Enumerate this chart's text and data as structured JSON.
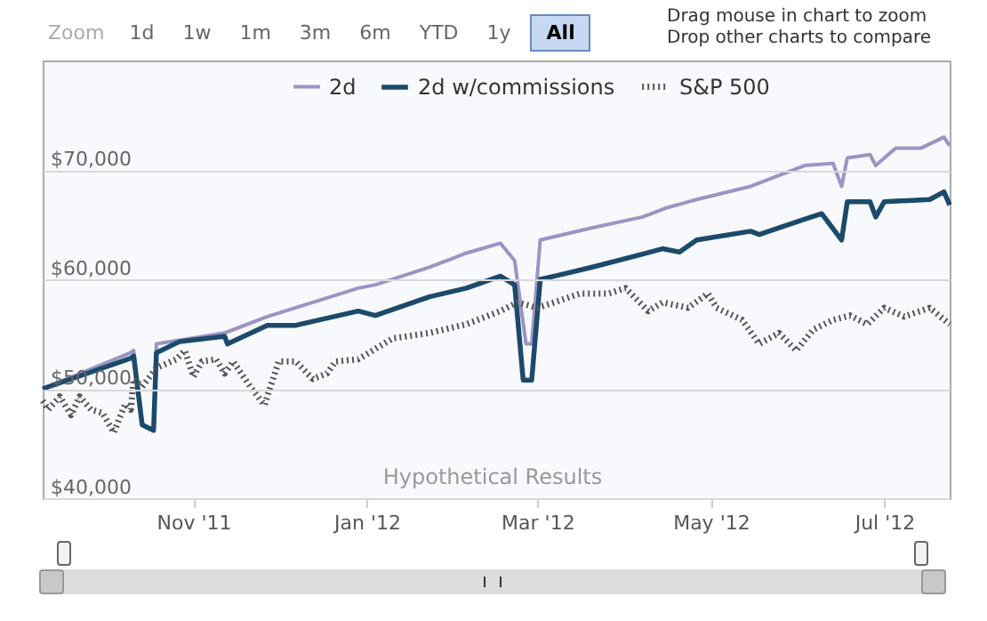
{
  "chart_data": {
    "type": "line",
    "annotations": [
      "Zoom",
      "1d",
      "1w",
      "1m",
      "3m",
      "6m",
      "YTD",
      "1y",
      "All",
      "Drag mouse in chart to zoom",
      "Drop other charts to compare",
      "Hypothetical Results"
    ],
    "xlim": [
      "2011-09-09",
      "2012-07-24"
    ],
    "xticks": [
      {
        "value": "2011-11-01",
        "label": "Nov '11"
      },
      {
        "value": "2012-01-01",
        "label": "Jan '12"
      },
      {
        "value": "2012-03-01",
        "label": "Mar '12"
      },
      {
        "value": "2012-05-01",
        "label": "May '12"
      },
      {
        "value": "2012-07-01",
        "label": "Jul '12"
      }
    ],
    "ylim": [
      40000,
      80000
    ],
    "yticks": [
      {
        "value": 40000,
        "label": "$40,000"
      },
      {
        "value": 50000,
        "label": "$50,000"
      },
      {
        "value": 60000,
        "label": "$60,000"
      },
      {
        "value": 70000,
        "label": "$70,000"
      }
    ],
    "grid": "y",
    "legend": "top",
    "series": [
      {
        "name": "2d",
        "color": "#9b94c4",
        "line_style": "solid",
        "x": [
          "2011-09-09",
          "2011-10-10",
          "2011-10-11",
          "2011-10-14",
          "2011-10-18",
          "2011-10-19",
          "2011-11-12",
          "2011-11-27",
          "2011-12-29",
          "2012-01-04",
          "2012-01-23",
          "2012-02-05",
          "2012-02-17",
          "2012-02-22",
          "2012-02-26",
          "2012-02-28",
          "2012-03-02",
          "2012-03-20",
          "2012-04-07",
          "2012-04-15",
          "2012-04-26",
          "2012-05-15",
          "2012-06-03",
          "2012-06-13",
          "2012-06-16",
          "2012-06-18",
          "2012-06-26",
          "2012-06-28",
          "2012-07-05",
          "2012-07-14",
          "2012-07-22",
          "2012-07-24"
        ],
        "values": [
          50000,
          53300,
          53500,
          46700,
          46200,
          54100,
          55100,
          56600,
          59200,
          59500,
          61100,
          62400,
          63300,
          61700,
          54100,
          54100,
          63600,
          64700,
          65700,
          66500,
          67300,
          68500,
          70400,
          70600,
          68500,
          71100,
          71400,
          70400,
          72000,
          72000,
          73000,
          72200
        ]
      },
      {
        "name": "2d w/commissions",
        "color": "#1b4a6b",
        "line_style": "solid",
        "x": [
          "2011-09-09",
          "2011-10-10",
          "2011-10-11",
          "2011-10-14",
          "2011-10-18",
          "2011-10-19",
          "2011-10-27",
          "2011-11-12",
          "2011-11-13",
          "2011-11-27",
          "2011-12-07",
          "2011-12-29",
          "2012-01-04",
          "2012-01-23",
          "2012-02-05",
          "2012-02-17",
          "2012-02-22",
          "2012-02-25",
          "2012-02-28",
          "2012-03-02",
          "2012-03-07",
          "2012-03-20",
          "2012-04-07",
          "2012-04-14",
          "2012-04-20",
          "2012-04-26",
          "2012-05-15",
          "2012-05-18",
          "2012-06-03",
          "2012-06-09",
          "2012-06-16",
          "2012-06-18",
          "2012-06-26",
          "2012-06-28",
          "2012-07-01",
          "2012-07-17",
          "2012-07-22",
          "2012-07-24"
        ],
        "values": [
          50000,
          52800,
          53000,
          46700,
          46200,
          53300,
          54300,
          54800,
          54100,
          55800,
          55800,
          57100,
          56700,
          58400,
          59200,
          60300,
          59500,
          50800,
          50800,
          60000,
          60300,
          61100,
          62300,
          62800,
          62500,
          63600,
          64400,
          64100,
          65500,
          66000,
          63600,
          67100,
          67100,
          65700,
          67100,
          67300,
          68000,
          66800
        ]
      },
      {
        "name": "S&P 500",
        "color": "#555555",
        "line_style": "dotted",
        "x": [
          "2011-09-09",
          "2011-09-11",
          "2011-09-15",
          "2011-09-19",
          "2011-09-22",
          "2011-09-26",
          "2011-09-30",
          "2011-10-04",
          "2011-10-08",
          "2011-10-10",
          "2011-10-11",
          "2011-10-14",
          "2011-10-19",
          "2011-10-26",
          "2011-10-29",
          "2011-11-01",
          "2011-11-04",
          "2011-11-09",
          "2011-11-12",
          "2011-11-15",
          "2011-11-21",
          "2011-11-26",
          "2011-12-01",
          "2011-12-07",
          "2011-12-13",
          "2011-12-18",
          "2011-12-21",
          "2011-12-29",
          "2012-01-10",
          "2012-01-23",
          "2012-02-05",
          "2012-02-17",
          "2012-02-23",
          "2012-03-01",
          "2012-03-07",
          "2012-03-16",
          "2012-03-26",
          "2012-04-01",
          "2012-04-09",
          "2012-04-14",
          "2012-04-23",
          "2012-04-30",
          "2012-05-03",
          "2012-05-12",
          "2012-05-18",
          "2012-05-25",
          "2012-05-31",
          "2012-06-06",
          "2012-06-13",
          "2012-06-19",
          "2012-06-25",
          "2012-07-01",
          "2012-07-08",
          "2012-07-17",
          "2012-07-24"
        ],
        "values": [
          48900,
          48100,
          49300,
          47600,
          49300,
          48100,
          47800,
          46000,
          48600,
          48100,
          50900,
          50200,
          51900,
          52700,
          53500,
          51100,
          52500,
          52700,
          51400,
          52500,
          50200,
          48500,
          52500,
          52500,
          50900,
          51400,
          52500,
          52700,
          54600,
          55100,
          55900,
          57100,
          57900,
          57400,
          57900,
          58700,
          58700,
          59200,
          57100,
          57900,
          57400,
          58700,
          57400,
          56300,
          54100,
          55100,
          53500,
          55400,
          56300,
          56700,
          55900,
          57400,
          56600,
          57400,
          55900
        ]
      }
    ]
  }
}
